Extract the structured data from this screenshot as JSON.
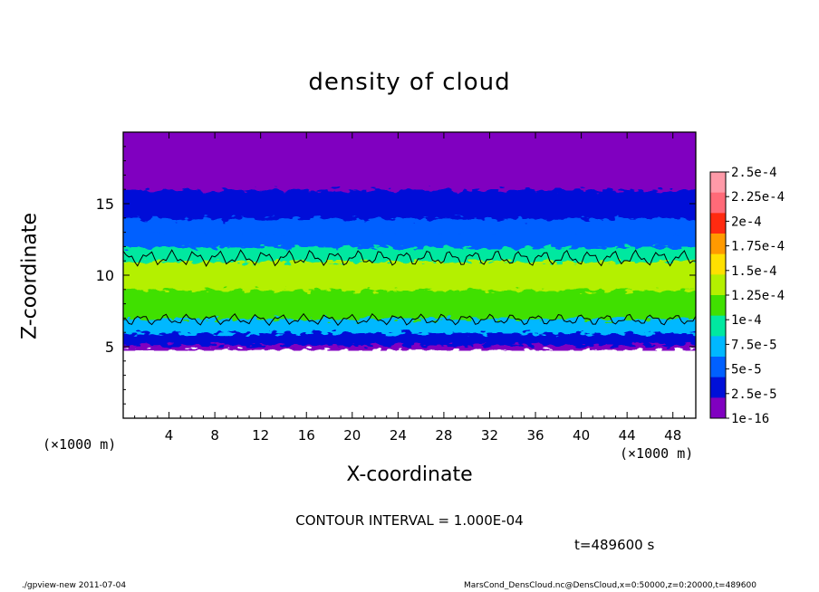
{
  "chart_data": {
    "type": "heatmap",
    "title": "density of cloud",
    "xlabel": "X-coordinate",
    "ylabel": "Z-coordinate",
    "x_unit": "(×1000 m)",
    "xlim": [
      0,
      50
    ],
    "ylim": [
      0,
      20
    ],
    "x_ticks": [
      "4",
      "8",
      "12",
      "16",
      "20",
      "24",
      "28",
      "32",
      "36",
      "40",
      "44",
      "48"
    ],
    "y_ticks": [
      "5",
      "10",
      "15"
    ],
    "colorbar": {
      "labels": [
        "2.5e-4",
        "2.25e-4",
        "2e-4",
        "1.75e-4",
        "1.5e-4",
        "1.25e-4",
        "1e-4",
        "7.5e-5",
        "5e-5",
        "2.5e-5",
        "1e-16"
      ],
      "colors": [
        "#ff9aa8",
        "#ff6a78",
        "#ff2a10",
        "#ff9a00",
        "#ffe000",
        "#b4f000",
        "#40e000",
        "#00e8a0",
        "#00b8ff",
        "#0060ff",
        "#0010d8",
        "#8000c0"
      ]
    },
    "contour_interval_text": "CONTOUR INTERVAL = 1.000E-04",
    "time_text": "t=489600 s",
    "cloud_profile_z_km": [
      4.8,
      5.5,
      6.5,
      7.5,
      8.5,
      9.5,
      10.5,
      11.5,
      12.5,
      13.5,
      14.5,
      15.5,
      16.5,
      17.5,
      18.5,
      19.5
    ],
    "cloud_profile_density": [
      2e-05,
      4.5e-05,
      9e-05,
      0.000125,
      0.00015,
      0.00017,
      0.00016,
      0.000105,
      7.5e-05,
      5.5e-05,
      4e-05,
      3e-05,
      2.2e-05,
      1.2e-05,
      6e-06,
      4e-06
    ]
  },
  "footer": {
    "left": "./gpview-new   2011-07-04",
    "right": "MarsCond_DensCloud.nc@DensCloud,x=0:50000,z=0:20000,t=489600"
  }
}
